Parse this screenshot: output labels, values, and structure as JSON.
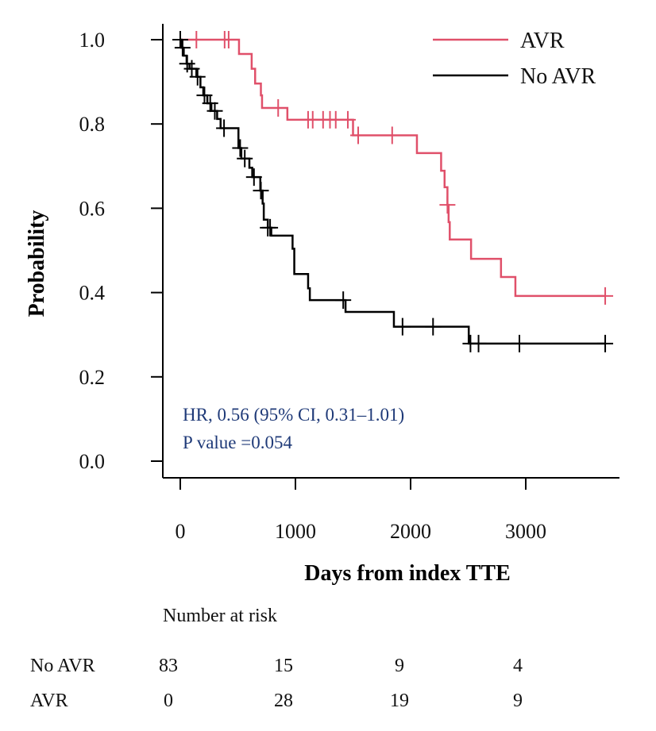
{
  "chart_data": {
    "type": "line",
    "subtype": "kaplan-meier step",
    "xlabel": "Days from index TTE",
    "ylabel": "Probability",
    "xlim": [
      0,
      3800
    ],
    "ylim": [
      0,
      1.0
    ],
    "x_ticks": [
      0,
      1000,
      2000,
      3000
    ],
    "x_tick_labels": [
      "0",
      "1000",
      "2000",
      "3000"
    ],
    "y_ticks": [
      0,
      0.2,
      0.4,
      0.6,
      0.8,
      1.0
    ],
    "y_tick_labels": [
      "0.0",
      "0.2",
      "0.4",
      "0.6",
      "0.8",
      "1.0"
    ],
    "grid": false,
    "legend_position": "top-right",
    "series": [
      {
        "name": "AVR",
        "color": "#e0506a",
        "steps": [
          [
            0,
            1.0
          ],
          [
            510,
            0.966
          ],
          [
            620,
            0.931
          ],
          [
            650,
            0.896
          ],
          [
            700,
            0.868
          ],
          [
            710,
            0.838
          ],
          [
            930,
            0.81
          ],
          [
            1500,
            0.773
          ],
          [
            2055,
            0.731
          ],
          [
            2265,
            0.689
          ],
          [
            2295,
            0.65
          ],
          [
            2320,
            0.608
          ],
          [
            2330,
            0.567
          ],
          [
            2340,
            0.526
          ],
          [
            2525,
            0.48
          ],
          [
            2785,
            0.437
          ],
          [
            2910,
            0.392
          ]
        ],
        "end_x": 3690,
        "censored_x": [
          140,
          385,
          420,
          850,
          1110,
          1150,
          1240,
          1300,
          1350,
          1455,
          1545,
          1840,
          2320,
          3690
        ]
      },
      {
        "name": "No AVR",
        "color": "#000000",
        "steps": [
          [
            0,
            1.0
          ],
          [
            10,
            0.981
          ],
          [
            30,
            0.962
          ],
          [
            55,
            0.943
          ],
          [
            80,
            0.931
          ],
          [
            140,
            0.912
          ],
          [
            175,
            0.887
          ],
          [
            200,
            0.868
          ],
          [
            235,
            0.849
          ],
          [
            270,
            0.831
          ],
          [
            320,
            0.812
          ],
          [
            350,
            0.79
          ],
          [
            505,
            0.743
          ],
          [
            530,
            0.718
          ],
          [
            600,
            0.696
          ],
          [
            625,
            0.674
          ],
          [
            695,
            0.642
          ],
          [
            715,
            0.611
          ],
          [
            725,
            0.573
          ],
          [
            760,
            0.554
          ],
          [
            790,
            0.535
          ],
          [
            975,
            0.504
          ],
          [
            990,
            0.444
          ],
          [
            1110,
            0.41
          ],
          [
            1125,
            0.382
          ],
          [
            1435,
            0.354
          ],
          [
            1855,
            0.319
          ],
          [
            2505,
            0.279
          ]
        ],
        "end_x": 3690,
        "censored_x": [
          0,
          20,
          60,
          100,
          150,
          210,
          260,
          300,
          380,
          520,
          560,
          640,
          700,
          760,
          780,
          1415,
          1930,
          2195,
          2520,
          2590,
          2945,
          3690
        ]
      }
    ],
    "annotations": [
      "HR, 0.56 (95% CI, 0.31–1.01)",
      "P value =0.054"
    ],
    "annotation_color": "#1f3a78",
    "risk_table": {
      "title": "Number at risk",
      "rows": [
        {
          "label": "No AVR",
          "values": [
            "83",
            "15",
            "9",
            "4"
          ]
        },
        {
          "label": "AVR",
          "values": [
            "0",
            "28",
            "19",
            "9"
          ]
        }
      ]
    }
  }
}
